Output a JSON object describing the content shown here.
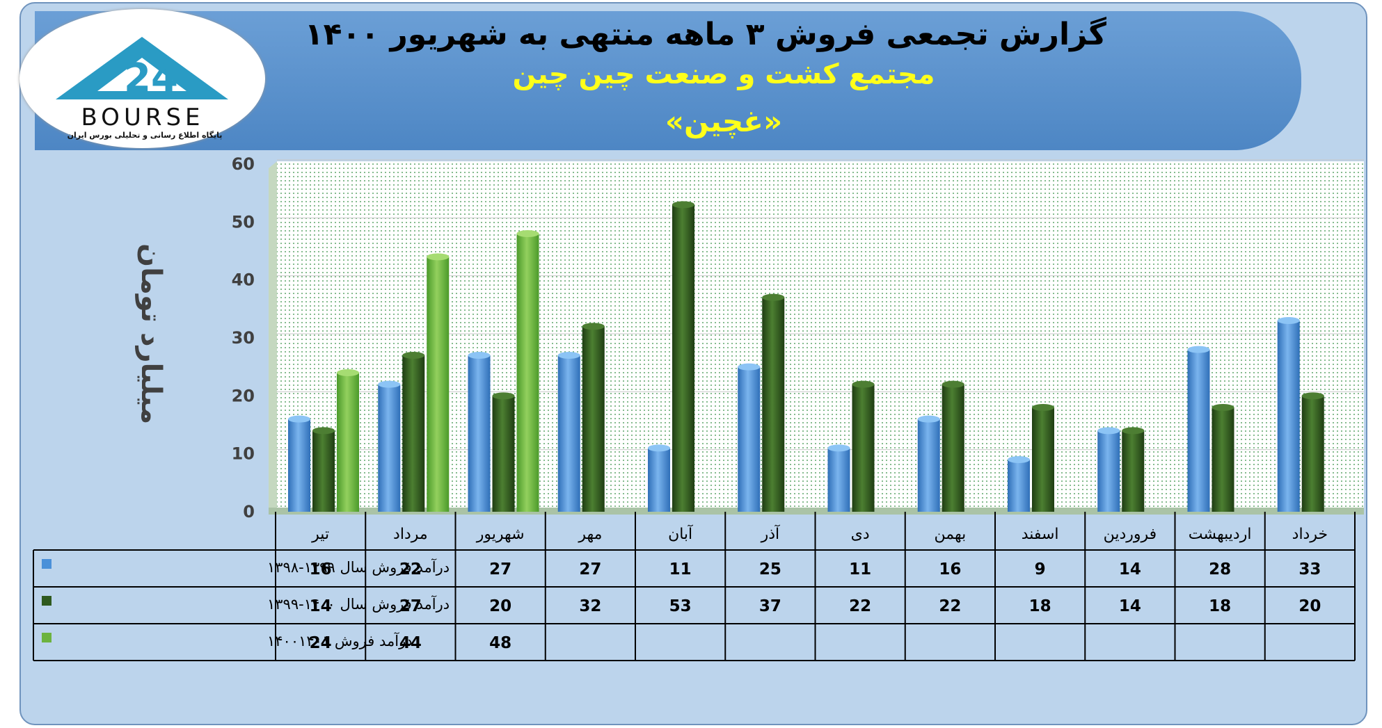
{
  "title": "گزارش تجمعی فروش ۳ ماهه منتهی به شهریور ۱۴۰۰",
  "subtitle": "مجتمع کشت و صنعت چین چین",
  "symbol": "«غچین»",
  "logo": {
    "word": "BOURSE",
    "tagline": "پایگاه اطلاع رسانی و تحلیلی بورس ایران"
  },
  "colors": {
    "series1": "#4a90d9",
    "series2": "#2f5a1f",
    "series3": "#6db33f"
  },
  "chart_data": {
    "type": "bar",
    "ylabel": "میلیارد تومان",
    "ylim": [
      0,
      60
    ],
    "yticks": [
      "0",
      "10",
      "20",
      "30",
      "40",
      "50",
      "60"
    ],
    "categories": [
      "تیر",
      "مرداد",
      "شهریور",
      "مهر",
      "آبان",
      "آذر",
      "دی",
      "بهمن",
      "اسفند",
      "فروردین",
      "اردیبهشت",
      "خرداد"
    ],
    "series": [
      {
        "name": "درآمد فروش سال ۱۳۹۹-۱۳۹۸",
        "values": [
          16,
          22,
          27,
          27,
          11,
          25,
          11,
          16,
          9,
          14,
          28,
          33
        ]
      },
      {
        "name": "درآمد فروش سال ۱۴۰۰-۱۳۹۹",
        "values": [
          14,
          27,
          20,
          32,
          53,
          37,
          22,
          22,
          18,
          14,
          18,
          20
        ]
      },
      {
        "name": "درآمد فروش ۱۴۰۰۱۴۰۱",
        "values": [
          24,
          44,
          48,
          null,
          null,
          null,
          null,
          null,
          null,
          null,
          null,
          null
        ]
      }
    ],
    "grid": true,
    "legend": "table-left"
  }
}
